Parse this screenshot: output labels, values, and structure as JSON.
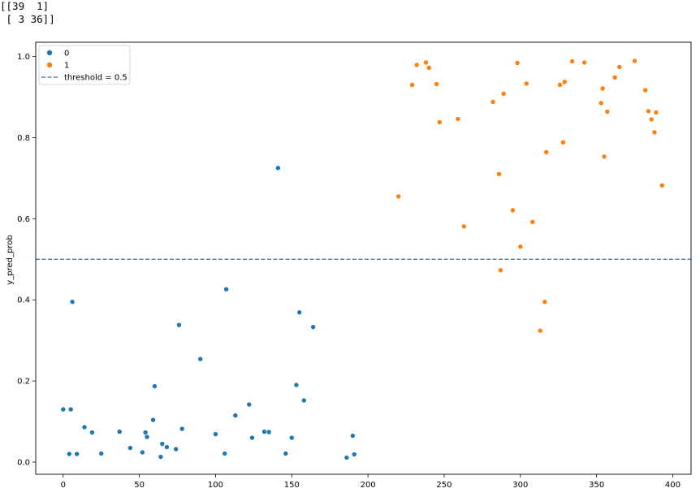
{
  "console": {
    "lines": [
      "[[39  1]",
      " [ 3 36]]"
    ]
  },
  "chart_data": {
    "type": "scatter",
    "title": "",
    "xlabel": "",
    "ylabel": "y_pred_prob",
    "xlim": [
      -18,
      412
    ],
    "ylim": [
      -0.03,
      1.035
    ],
    "xticks": [
      0,
      50,
      100,
      150,
      200,
      250,
      300,
      350,
      400
    ],
    "yticks": [
      0.0,
      0.2,
      0.4,
      0.6,
      0.8,
      1.0
    ],
    "xtick_labels": [
      "0",
      "50",
      "100",
      "150",
      "200",
      "250",
      "300",
      "350",
      "400"
    ],
    "ytick_labels": [
      "0.0",
      "0.2",
      "0.4",
      "0.6",
      "0.8",
      "1.0"
    ],
    "grid": false,
    "legend_position": "top-left",
    "threshold": {
      "value": 0.5,
      "label": "threshold = 0.5",
      "color": "#1f77b4",
      "style": "dashed"
    },
    "series": [
      {
        "name": "0",
        "color": "#1f77b4",
        "points": [
          [
            0,
            0.13
          ],
          [
            4,
            0.02
          ],
          [
            5,
            0.13
          ],
          [
            6,
            0.395
          ],
          [
            9,
            0.02
          ],
          [
            14,
            0.086
          ],
          [
            19,
            0.073
          ],
          [
            25,
            0.021
          ],
          [
            37,
            0.075
          ],
          [
            44,
            0.035
          ],
          [
            52,
            0.024
          ],
          [
            54,
            0.073
          ],
          [
            55,
            0.062
          ],
          [
            59,
            0.104
          ],
          [
            60,
            0.187
          ],
          [
            64,
            0.013
          ],
          [
            65,
            0.045
          ],
          [
            68,
            0.037
          ],
          [
            74,
            0.032
          ],
          [
            76,
            0.338
          ],
          [
            78,
            0.082
          ],
          [
            90,
            0.254
          ],
          [
            100,
            0.069
          ],
          [
            106,
            0.021
          ],
          [
            107,
            0.426
          ],
          [
            113,
            0.115
          ],
          [
            122,
            0.142
          ],
          [
            124,
            0.06
          ],
          [
            132,
            0.075
          ],
          [
            135,
            0.074
          ],
          [
            141,
            0.725
          ],
          [
            146,
            0.021
          ],
          [
            150,
            0.06
          ],
          [
            153,
            0.19
          ],
          [
            155,
            0.369
          ],
          [
            158,
            0.152
          ],
          [
            164,
            0.333
          ],
          [
            186,
            0.011
          ],
          [
            190,
            0.065
          ],
          [
            191,
            0.019
          ]
        ]
      },
      {
        "name": "1",
        "color": "#ff7f0e",
        "points": [
          [
            220,
            0.655
          ],
          [
            229,
            0.93
          ],
          [
            232,
            0.979
          ],
          [
            238,
            0.985
          ],
          [
            240,
            0.972
          ],
          [
            245,
            0.932
          ],
          [
            247,
            0.838
          ],
          [
            259,
            0.846
          ],
          [
            263,
            0.581
          ],
          [
            282,
            0.888
          ],
          [
            286,
            0.71
          ],
          [
            287,
            0.473
          ],
          [
            289,
            0.908
          ],
          [
            295,
            0.621
          ],
          [
            298,
            0.984
          ],
          [
            300,
            0.531
          ],
          [
            304,
            0.933
          ],
          [
            308,
            0.592
          ],
          [
            313,
            0.324
          ],
          [
            316,
            0.395
          ],
          [
            317,
            0.764
          ],
          [
            326,
            0.93
          ],
          [
            328,
            0.788
          ],
          [
            329,
            0.937
          ],
          [
            334,
            0.988
          ],
          [
            342,
            0.985
          ],
          [
            353,
            0.885
          ],
          [
            354,
            0.921
          ],
          [
            355,
            0.753
          ],
          [
            357,
            0.864
          ],
          [
            362,
            0.948
          ],
          [
            365,
            0.974
          ],
          [
            375,
            0.989
          ],
          [
            382,
            0.917
          ],
          [
            384,
            0.865
          ],
          [
            386,
            0.845
          ],
          [
            388,
            0.813
          ],
          [
            389,
            0.862
          ],
          [
            393,
            0.682
          ]
        ]
      }
    ]
  }
}
